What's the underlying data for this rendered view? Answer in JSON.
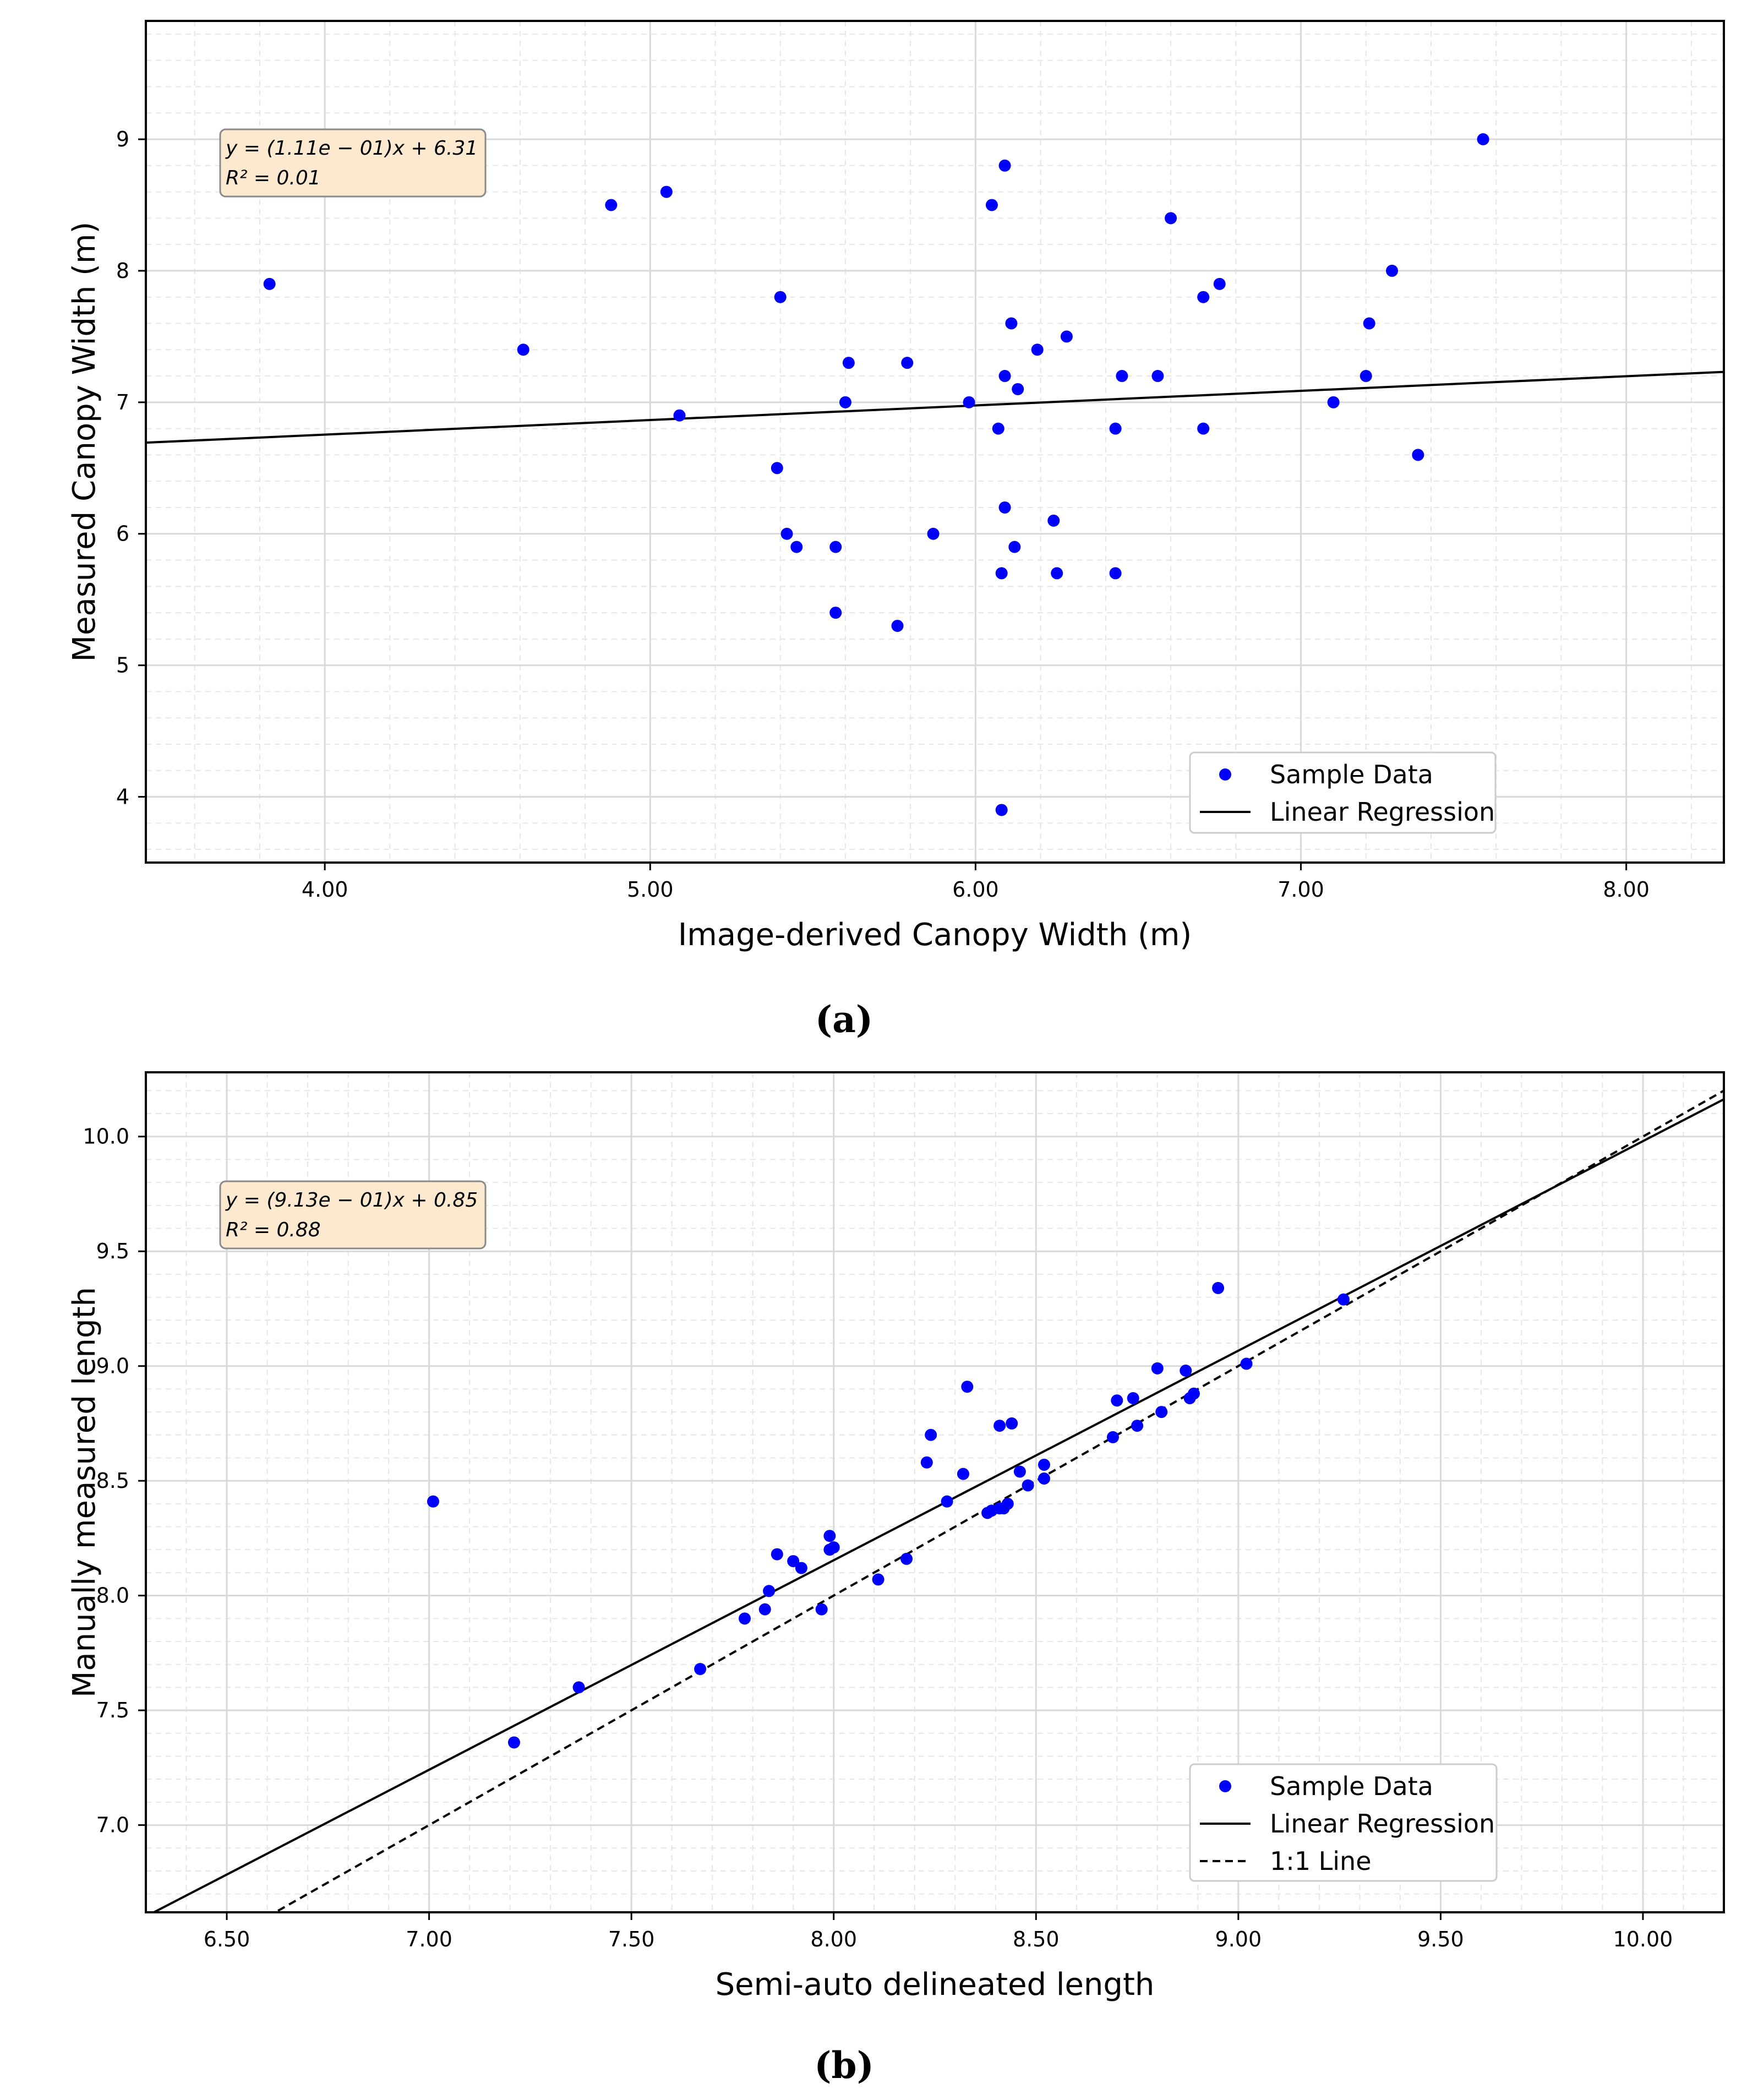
{
  "chart_data": [
    {
      "type": "scatter",
      "caption": "(a)",
      "xlabel": "Image-derived Canopy Width (m)",
      "ylabel": "Measured Canopy Width (m)",
      "xlim": [
        3.45,
        8.3
      ],
      "ylim": [
        3.5,
        9.9
      ],
      "xticks": [
        4.0,
        5.0,
        6.0,
        7.0,
        8.0
      ],
      "xtick_labels": [
        "4.00",
        "5.00",
        "6.00",
        "7.00",
        "8.00"
      ],
      "yticks": [
        4,
        5,
        6,
        7,
        8,
        9
      ],
      "ytick_labels": [
        "4",
        "5",
        "6",
        "7",
        "8",
        "9"
      ],
      "grid": true,
      "annotation": {
        "line1": "y = (1.11e − 01)x + 6.31",
        "line2": "R² = 0.01"
      },
      "legend": {
        "position": "bottom-right",
        "entries": [
          "Sample Data",
          "Linear Regression"
        ]
      },
      "regression": {
        "slope": 0.111,
        "intercept": 6.31
      },
      "points": [
        [
          3.83,
          7.9
        ],
        [
          4.61,
          7.4
        ],
        [
          4.88,
          8.5
        ],
        [
          5.05,
          8.6
        ],
        [
          5.09,
          6.9
        ],
        [
          5.39,
          6.5
        ],
        [
          5.4,
          7.8
        ],
        [
          5.42,
          6.0
        ],
        [
          5.45,
          5.9
        ],
        [
          5.57,
          5.9
        ],
        [
          5.57,
          5.4
        ],
        [
          5.6,
          7.0
        ],
        [
          5.61,
          7.3
        ],
        [
          5.76,
          5.3
        ],
        [
          5.79,
          7.3
        ],
        [
          5.87,
          6.0
        ],
        [
          5.98,
          7.0
        ],
        [
          6.05,
          8.5
        ],
        [
          6.07,
          6.8
        ],
        [
          6.08,
          5.7
        ],
        [
          6.08,
          3.9
        ],
        [
          6.09,
          8.8
        ],
        [
          6.09,
          7.2
        ],
        [
          6.09,
          6.2
        ],
        [
          6.11,
          7.6
        ],
        [
          6.12,
          5.9
        ],
        [
          6.13,
          7.1
        ],
        [
          6.19,
          7.4
        ],
        [
          6.24,
          6.1
        ],
        [
          6.25,
          5.7
        ],
        [
          6.28,
          7.5
        ],
        [
          6.43,
          6.8
        ],
        [
          6.43,
          5.7
        ],
        [
          6.45,
          7.2
        ],
        [
          6.56,
          7.2
        ],
        [
          6.6,
          8.4
        ],
        [
          6.7,
          7.8
        ],
        [
          6.7,
          6.8
        ],
        [
          6.75,
          7.9
        ],
        [
          7.1,
          7.0
        ],
        [
          7.2,
          7.2
        ],
        [
          7.21,
          7.6
        ],
        [
          7.28,
          8.0
        ],
        [
          7.36,
          6.6
        ],
        [
          7.56,
          9.0
        ]
      ]
    },
    {
      "type": "scatter",
      "caption": "(b)",
      "xlabel": "Semi-auto delineated length",
      "ylabel": "Manually measured length",
      "xlim": [
        6.3,
        10.2
      ],
      "ylim": [
        6.62,
        10.28
      ],
      "xticks": [
        6.5,
        7.0,
        7.5,
        8.0,
        8.5,
        9.0,
        9.5,
        10.0
      ],
      "xtick_labels": [
        "6.50",
        "7.00",
        "7.50",
        "8.00",
        "8.50",
        "9.00",
        "9.50",
        "10.00"
      ],
      "yticks": [
        7.0,
        7.5,
        8.0,
        8.5,
        9.0,
        9.5,
        10.0
      ],
      "ytick_labels": [
        "7.0",
        "7.5",
        "8.0",
        "8.5",
        "9.0",
        "9.5",
        "10.0"
      ],
      "grid": true,
      "annotation": {
        "line1": "y = (9.13e − 01)x + 0.85",
        "line2": "R² = 0.88"
      },
      "legend": {
        "position": "bottom-right",
        "entries": [
          "Sample Data",
          "Linear Regression",
          "1:1 Line"
        ]
      },
      "regression": {
        "slope": 0.913,
        "intercept": 0.85
      },
      "identity_line": true,
      "points": [
        [
          7.01,
          8.41
        ],
        [
          7.21,
          7.36
        ],
        [
          7.37,
          7.6
        ],
        [
          7.67,
          7.68
        ],
        [
          7.78,
          7.9
        ],
        [
          7.83,
          7.94
        ],
        [
          7.84,
          8.02
        ],
        [
          7.86,
          8.18
        ],
        [
          7.9,
          8.15
        ],
        [
          7.92,
          8.12
        ],
        [
          7.97,
          7.94
        ],
        [
          7.99,
          8.2
        ],
        [
          7.99,
          8.26
        ],
        [
          8.0,
          8.21
        ],
        [
          8.11,
          8.07
        ],
        [
          8.18,
          8.16
        ],
        [
          8.23,
          8.58
        ],
        [
          8.24,
          8.7
        ],
        [
          8.28,
          8.41
        ],
        [
          8.32,
          8.53
        ],
        [
          8.33,
          8.91
        ],
        [
          8.38,
          8.36
        ],
        [
          8.39,
          8.37
        ],
        [
          8.41,
          8.38
        ],
        [
          8.41,
          8.74
        ],
        [
          8.42,
          8.38
        ],
        [
          8.43,
          8.4
        ],
        [
          8.44,
          8.75
        ],
        [
          8.46,
          8.54
        ],
        [
          8.48,
          8.48
        ],
        [
          8.52,
          8.51
        ],
        [
          8.52,
          8.57
        ],
        [
          8.69,
          8.69
        ],
        [
          8.7,
          8.85
        ],
        [
          8.74,
          8.86
        ],
        [
          8.75,
          8.74
        ],
        [
          8.8,
          8.99
        ],
        [
          8.81,
          8.8
        ],
        [
          8.87,
          8.98
        ],
        [
          8.88,
          8.86
        ],
        [
          8.89,
          8.88
        ],
        [
          8.95,
          9.34
        ],
        [
          9.02,
          9.01
        ],
        [
          9.26,
          9.29
        ]
      ]
    }
  ],
  "colors": {
    "point": "#0000ff",
    "line": "#000000",
    "grid": "#d9d9d9",
    "annotation_bg": "#fde9cf",
    "annotation_border": "#8a8a8a"
  }
}
